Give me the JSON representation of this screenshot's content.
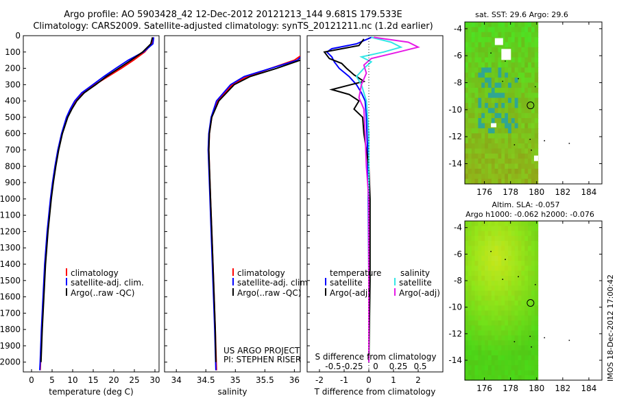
{
  "header": {
    "line1": "Argo profile: AO 5903428_42 12-Dec-2012 20121213_144 9.681S 179.533E",
    "line2": "Climatology: CARS2009. Satellite-adjusted climatology: synTS_20121211.nc (1.2d earlier)"
  },
  "colors": {
    "climatology": "#ff0000",
    "satellite": "#0000ff",
    "argo": "#000000",
    "sal_satellite": "#33e6e6",
    "sal_argo": "#e619e6"
  },
  "chart_data": [
    {
      "type": "line",
      "id": "temperature",
      "xlabel": "temperature (deg C)",
      "ylabel": "",
      "xlim": [
        -2,
        31
      ],
      "ylim": [
        2060,
        0
      ],
      "x_ticks": [
        0,
        5,
        10,
        15,
        20,
        25,
        30
      ],
      "y_ticks": [
        0,
        100,
        200,
        300,
        400,
        500,
        600,
        700,
        800,
        900,
        1000,
        1100,
        1200,
        1300,
        1400,
        1500,
        1600,
        1700,
        1800,
        1900,
        2000
      ],
      "legend": [
        "climatology",
        "satellite-adj. clim.",
        "Argo(..raw -QC)"
      ],
      "series": [
        {
          "name": "climatology",
          "color": "#ff0000",
          "depth": [
            10,
            50,
            100,
            150,
            200,
            250,
            300,
            350,
            400,
            450,
            500,
            600,
            700,
            800,
            900,
            1000,
            1200,
            1400,
            1600,
            1800,
            2000,
            2050
          ],
          "values": [
            29.6,
            29.2,
            27.5,
            24.8,
            21.8,
            18.6,
            15.4,
            12.4,
            10.6,
            9.5,
            8.6,
            7.4,
            6.5,
            5.8,
            5.2,
            4.7,
            3.9,
            3.3,
            2.9,
            2.5,
            2.2,
            2.1
          ]
        },
        {
          "name": "satellite-adj. clim.",
          "color": "#0000ff",
          "depth": [
            10,
            50,
            100,
            150,
            200,
            250,
            300,
            350,
            400,
            450,
            500,
            600,
            700,
            800,
            900,
            1000,
            1200,
            1400,
            1600,
            1800,
            2000,
            2050
          ],
          "values": [
            29.7,
            29.5,
            27.2,
            23.5,
            20.5,
            17.6,
            14.9,
            12.2,
            10.5,
            9.4,
            8.5,
            7.3,
            6.4,
            5.7,
            5.1,
            4.6,
            3.8,
            3.2,
            2.8,
            2.4,
            2.1,
            2.0
          ]
        },
        {
          "name": "Argo(..raw -QC)",
          "color": "#000000",
          "depth": [
            10,
            50,
            100,
            150,
            200,
            250,
            300,
            350,
            400,
            450,
            500,
            600,
            700,
            800,
            900,
            1000,
            1200,
            1400,
            1600,
            1800,
            2000
          ],
          "values": [
            29.4,
            29.0,
            27.0,
            24.2,
            21.2,
            18.2,
            15.6,
            12.8,
            11.0,
            9.8,
            8.8,
            7.5,
            6.6,
            5.9,
            5.3,
            4.8,
            4.0,
            3.4,
            3.0,
            2.6,
            2.3
          ]
        }
      ]
    },
    {
      "type": "line",
      "id": "salinity",
      "xlabel": "salinity",
      "ylabel": "",
      "xlim": [
        33.8,
        36.1
      ],
      "ylim": [
        2060,
        0
      ],
      "x_ticks": [
        34,
        34.5,
        35,
        35.5,
        36
      ],
      "legend": [
        "climatology",
        "satellite-adj. clim.",
        "Argo(..raw -QC)"
      ],
      "annotation": [
        "US ARGO PROJECT",
        "PI: STEPHEN RISER"
      ],
      "series": [
        {
          "name": "climatology",
          "color": "#ff0000",
          "depth": [
            100,
            150,
            200,
            250,
            300,
            400,
            500,
            600,
            700,
            800,
            1000,
            1200,
            1500,
            1800,
            2050
          ],
          "values": [
            36.2,
            36.0,
            35.6,
            35.2,
            34.95,
            34.7,
            34.6,
            34.56,
            34.55,
            34.56,
            34.58,
            34.6,
            34.63,
            34.66,
            34.68
          ]
        },
        {
          "name": "satellite-adj. clim.",
          "color": "#0000ff",
          "depth": [
            100,
            150,
            200,
            250,
            300,
            400,
            500,
            600,
            700,
            800,
            1000,
            1200,
            1500,
            1800,
            2050
          ],
          "values": [
            36.2,
            36.05,
            35.6,
            35.15,
            34.92,
            34.68,
            34.59,
            34.55,
            34.54,
            34.55,
            34.57,
            34.59,
            34.62,
            34.65,
            34.67
          ]
        },
        {
          "name": "Argo(..raw -QC)",
          "color": "#000000",
          "depth": [
            80,
            110,
            150,
            200,
            250,
            300,
            400,
            500,
            600,
            700,
            800,
            1000,
            1200,
            1500,
            1800,
            2000
          ],
          "values": [
            36.3,
            36.25,
            36.1,
            35.7,
            35.25,
            34.98,
            34.72,
            34.6,
            34.56,
            34.55,
            34.56,
            34.58,
            34.6,
            34.63,
            34.66,
            34.67
          ]
        }
      ]
    },
    {
      "type": "line",
      "id": "difference",
      "xlabel": "T difference from climatology",
      "x2label": "S difference from climatology",
      "x_ticks": [
        -2,
        -1,
        0,
        1,
        2
      ],
      "x2_ticks": [
        "-0.5",
        "-0.25",
        "0",
        "0.25",
        "0.5"
      ],
      "xlim": [
        -2.5,
        3
      ],
      "ylim": [
        2060,
        0
      ],
      "legend_titles": [
        "temperature",
        "salinity"
      ],
      "legend": [
        "satellite",
        "Argo(-adj)",
        "satellite",
        "Argo(-adj)"
      ],
      "series": [
        {
          "name": "satellite",
          "color": "#0000ff",
          "depth": [
            10,
            50,
            80,
            100,
            130,
            160,
            200,
            250,
            300,
            350,
            400,
            500,
            700,
            1000,
            1500,
            2000
          ],
          "values": [
            0.1,
            -0.5,
            -1.5,
            -1.7,
            -1.5,
            -1.4,
            -1.2,
            -0.8,
            -0.5,
            -0.3,
            -0.15,
            -0.1,
            -0.05,
            -0.02,
            0,
            0
          ]
        },
        {
          "name": "Argo(-adj)",
          "color": "#000000",
          "depth": [
            20,
            60,
            100,
            140,
            170,
            200,
            240,
            280,
            330,
            360,
            400,
            450,
            500,
            600,
            700,
            800,
            1000,
            1500,
            2000
          ],
          "values": [
            -0.2,
            -0.4,
            -1.8,
            -1.6,
            -1.1,
            -0.9,
            -0.6,
            -0.2,
            -1.5,
            -0.8,
            -0.4,
            -0.6,
            -0.25,
            -0.2,
            -0.1,
            0,
            0.05,
            0.05,
            0
          ]
        },
        {
          "name": "satellite",
          "color": "#33e6e6",
          "depth": [
            10,
            40,
            70,
            100,
            130,
            160,
            200,
            250,
            300,
            400,
            600,
            1000,
            1500,
            2000
          ],
          "values": [
            0.1,
            0.9,
            1.3,
            0.6,
            -0.3,
            0.1,
            -0.2,
            -0.5,
            -0.3,
            -0.1,
            0,
            0,
            0,
            0
          ]
        },
        {
          "name": "Argo(-adj)",
          "color": "#e619e6",
          "depth": [
            10,
            40,
            70,
            100,
            140,
            180,
            230,
            300,
            380,
            450,
            600,
            800,
            1000,
            1500,
            2000
          ],
          "values": [
            0.2,
            1.6,
            2.0,
            1.2,
            0.1,
            -0.2,
            -0.1,
            -0.3,
            -0.4,
            -0.2,
            -0.15,
            -0.1,
            0,
            0,
            0
          ]
        }
      ]
    },
    {
      "type": "heatmap",
      "id": "sst-map",
      "title": "sat. SST: 29.6 Argo: 29.6",
      "x_ticks": [
        176,
        178,
        180,
        182,
        184
      ],
      "y_ticks": [
        -4,
        -6,
        -8,
        -10,
        -12,
        -14
      ],
      "xlim": [
        174.5,
        185
      ],
      "ylim": [
        -15.5,
        -3.5
      ],
      "argo_position": {
        "lon": 179.533,
        "lat": -9.681
      }
    },
    {
      "type": "heatmap",
      "id": "sla-map",
      "title": "Altim. SLA: -0.057",
      "subtitle": "Argo h1000: -0.062 h2000: -0.076",
      "x_ticks": [
        176,
        178,
        180,
        182,
        184
      ],
      "y_ticks": [
        -4,
        -6,
        -8,
        -10,
        -12,
        -14
      ],
      "xlim": [
        174.5,
        185
      ],
      "ylim": [
        -15.5,
        -3.5
      ],
      "argo_position": {
        "lon": 179.533,
        "lat": -9.681
      }
    }
  ],
  "footer": {
    "side_text": "IMOS 18-Dec-2012 17:00:42"
  }
}
